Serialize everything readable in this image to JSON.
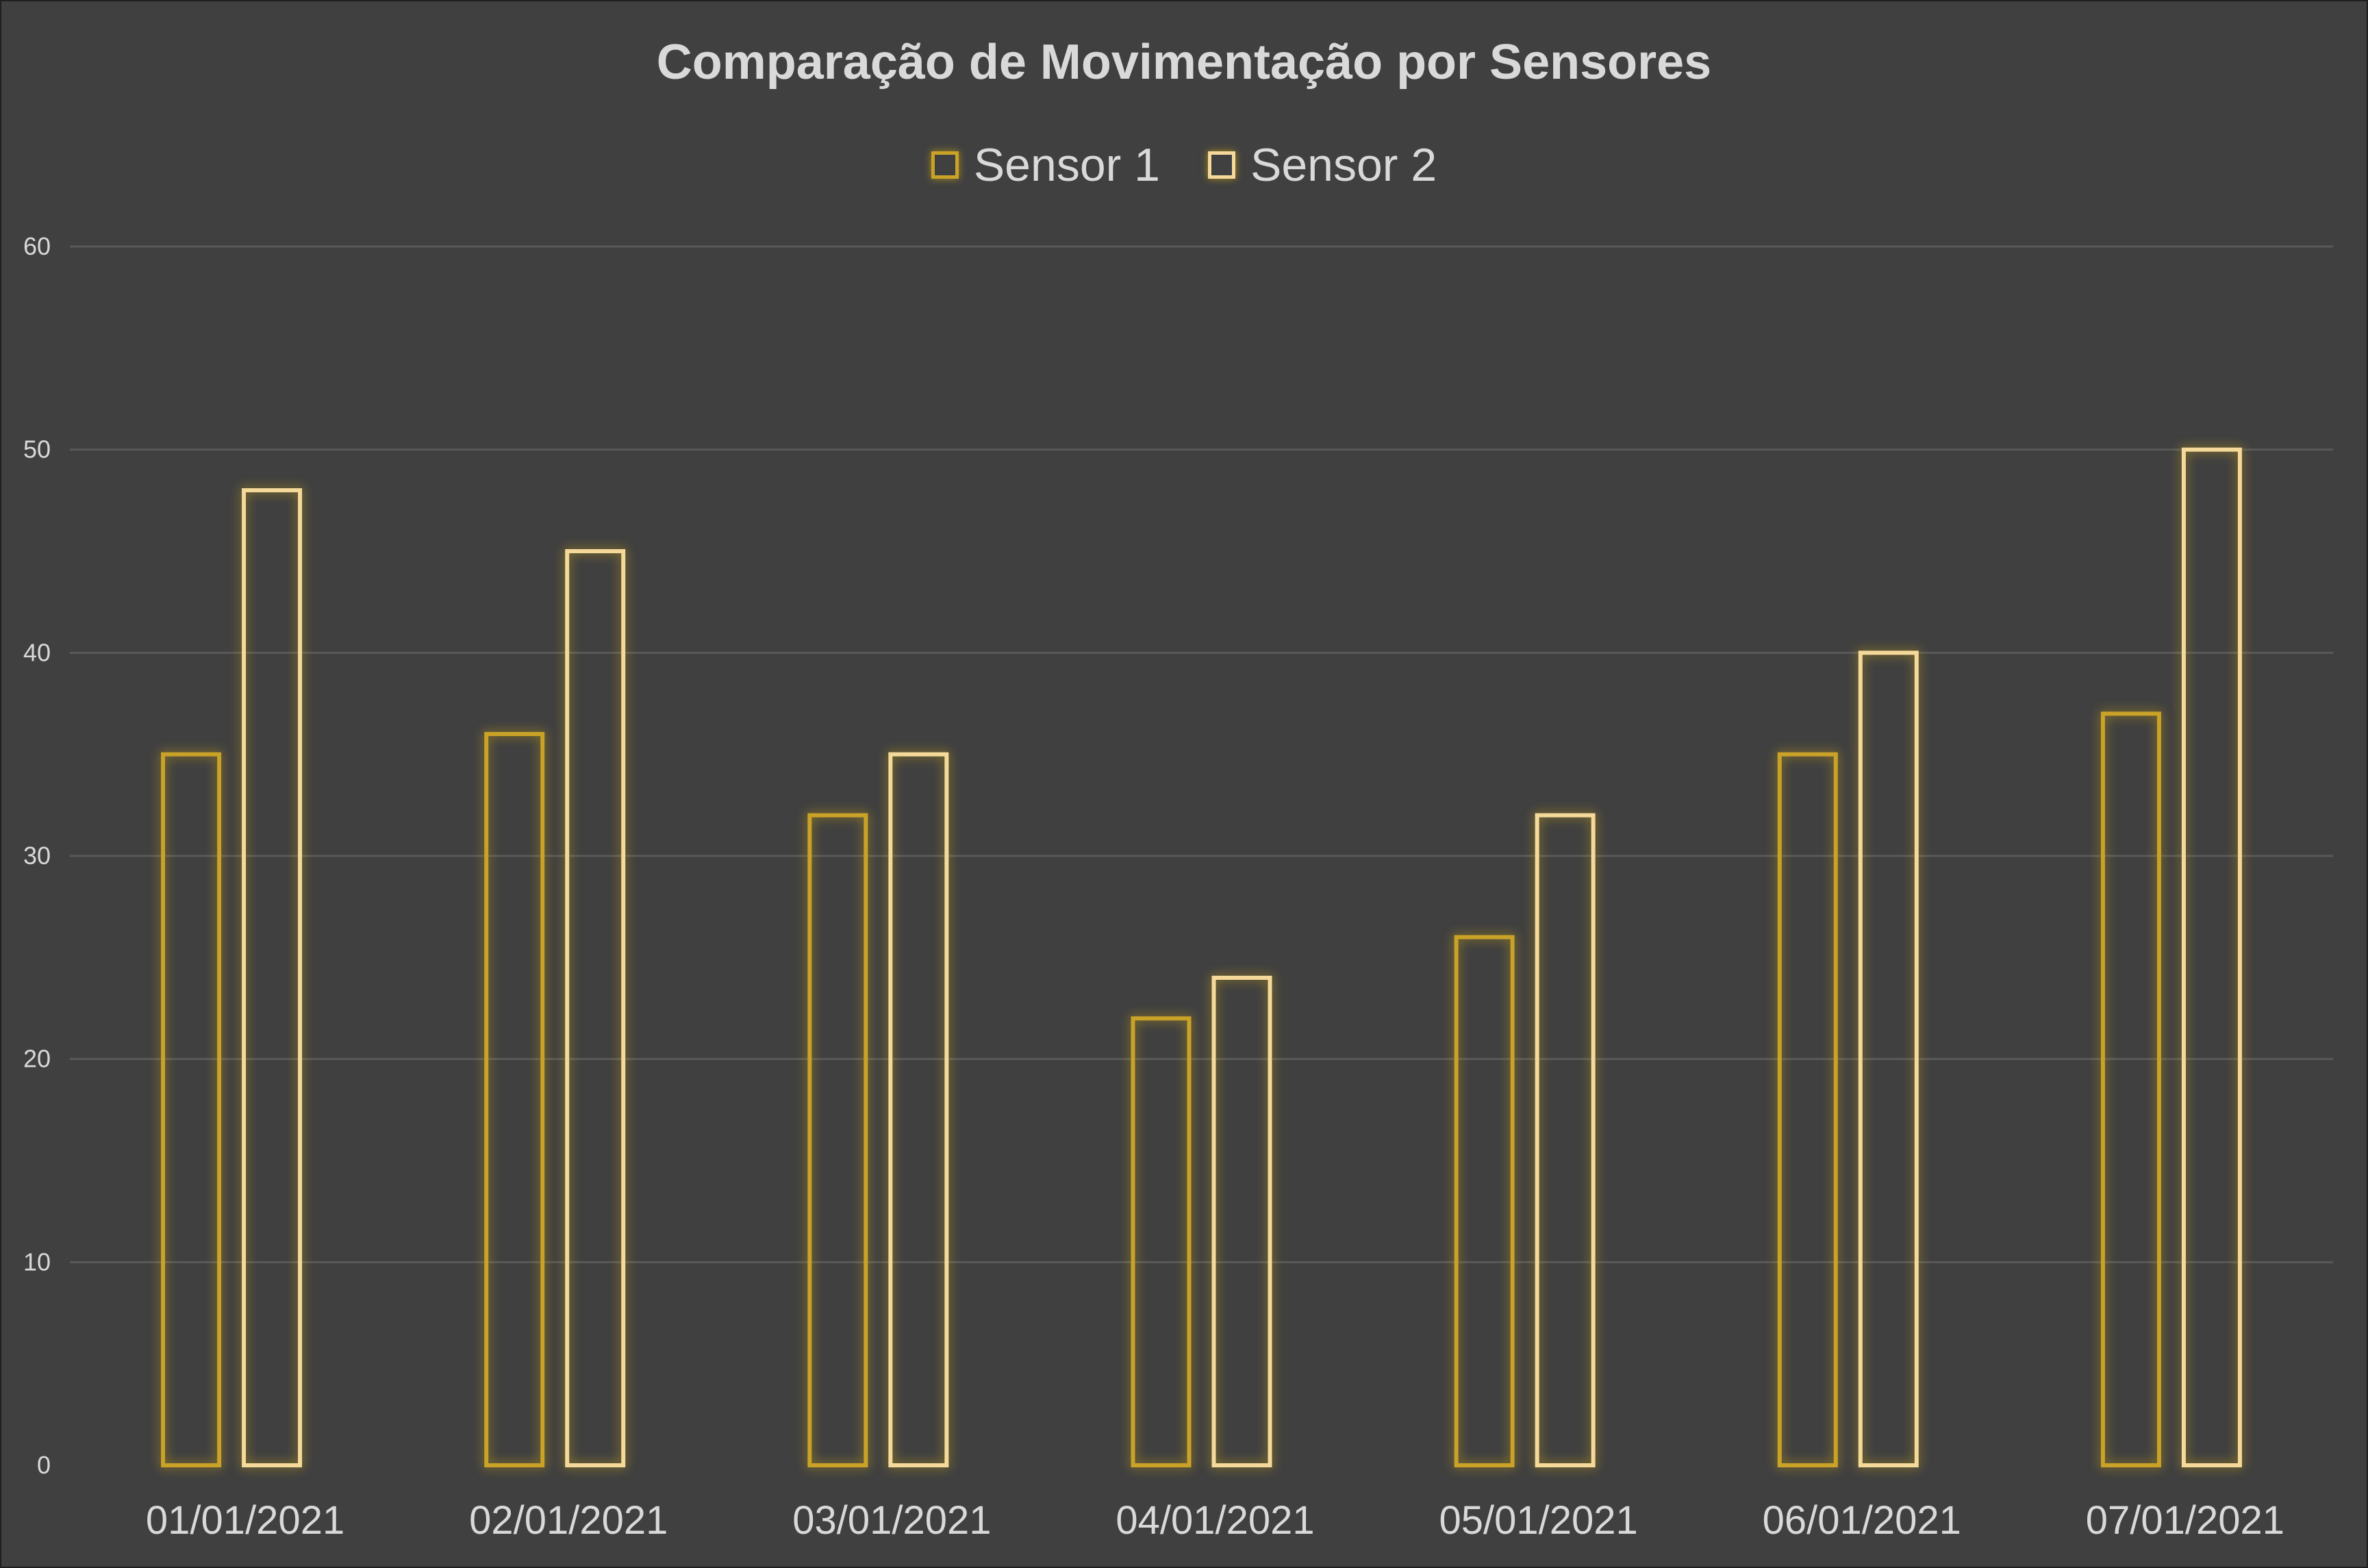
{
  "chart_data": {
    "type": "bar",
    "title": "Comparação de Movimentação por Sensores",
    "xlabel": "",
    "ylabel": "",
    "categories": [
      "01/01/2021",
      "02/01/2021",
      "03/01/2021",
      "04/01/2021",
      "05/01/2021",
      "06/01/2021",
      "07/01/2021"
    ],
    "series": [
      {
        "name": "Sensor 1",
        "values": [
          35,
          36,
          32,
          22,
          26,
          35,
          37
        ],
        "color": "#c9a227"
      },
      {
        "name": "Sensor 2",
        "values": [
          48,
          45,
          35,
          24,
          32,
          40,
          50
        ],
        "color": "#f5d99a"
      }
    ],
    "ylim": [
      0,
      60
    ],
    "yticks": [
      0,
      10,
      20,
      30,
      40,
      50,
      60
    ],
    "grid": true,
    "legend": "top-center",
    "style": {
      "background": "#404040",
      "gridline_color": "#595959",
      "text_color": "#d9d9d9",
      "bar_fill": "none"
    }
  }
}
